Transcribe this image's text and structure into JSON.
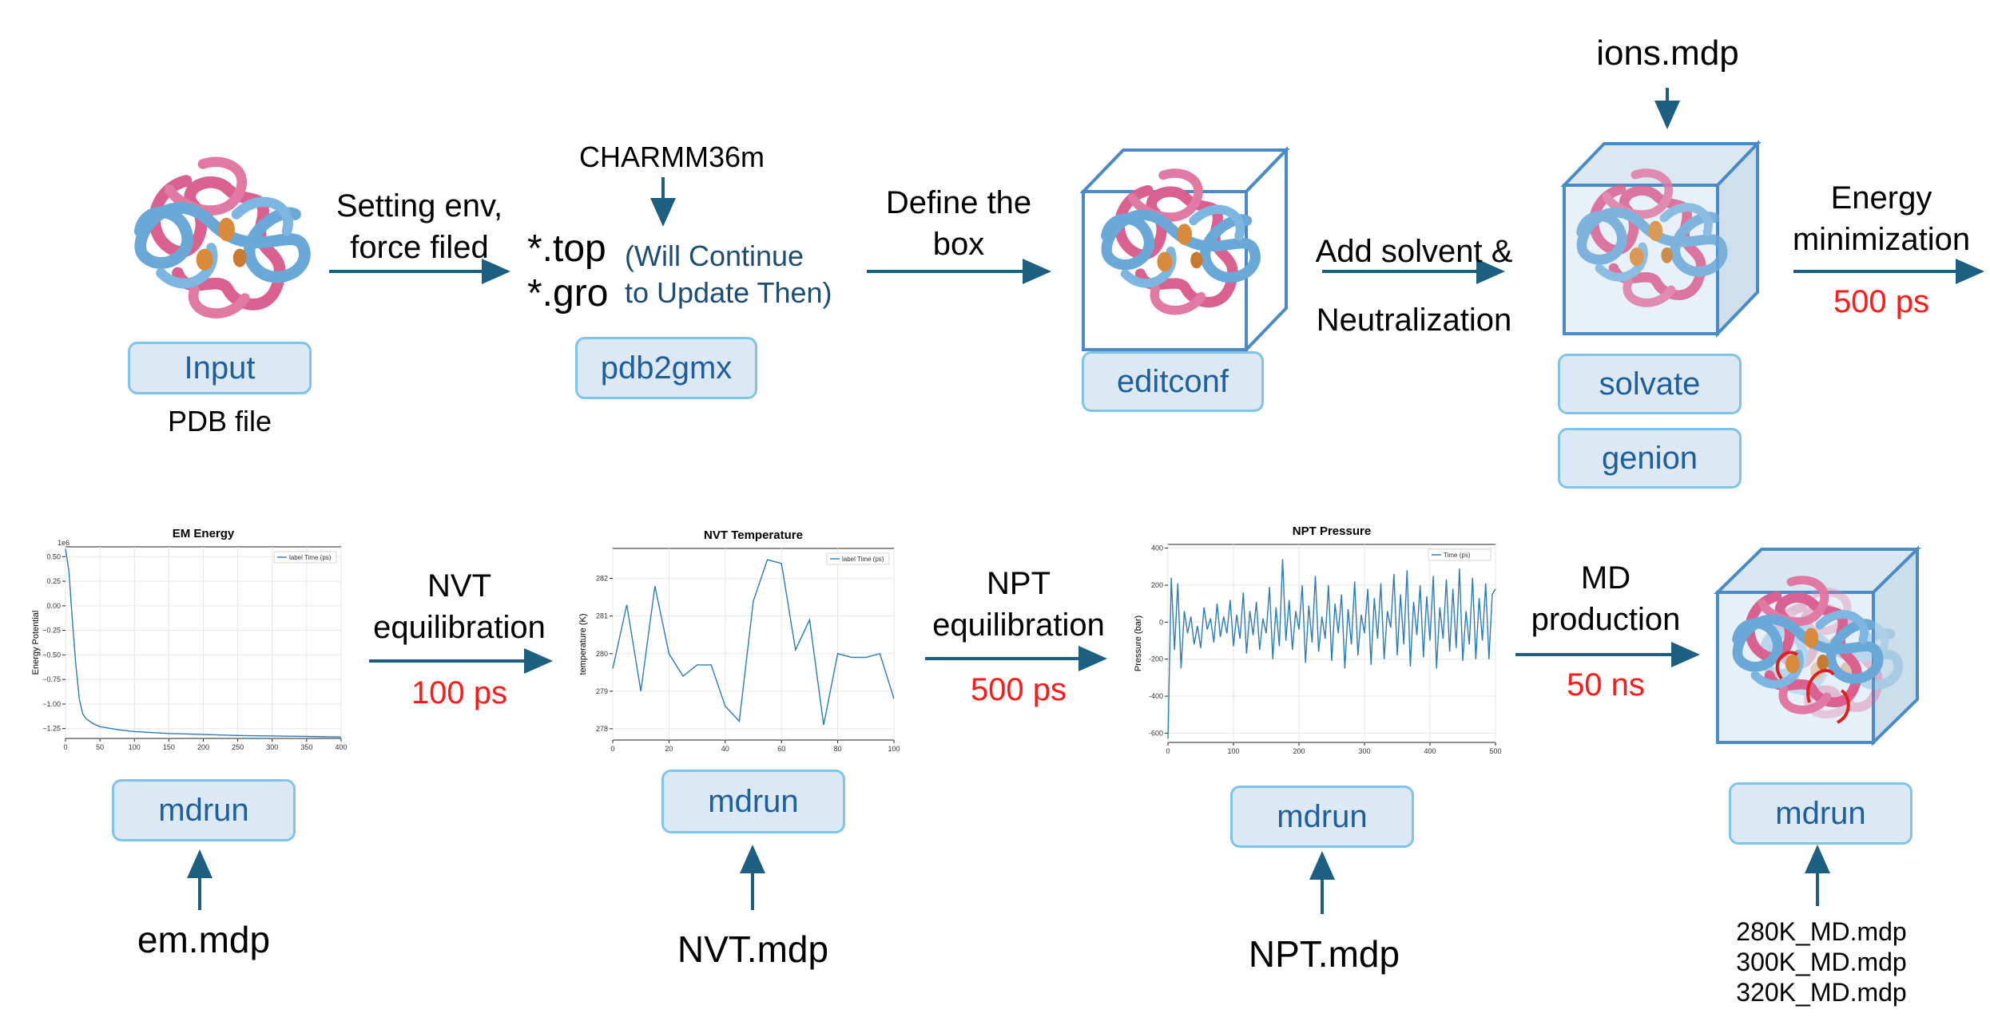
{
  "top": {
    "input_box": "Input",
    "input_caption": "PDB file",
    "arrow1_label_line1": "Setting env,",
    "arrow1_label_line2": "force filed",
    "forcefield": "CHARMM36m",
    "top_file": "*.top",
    "gro_file": "*.gro",
    "update_note_line1": "(Will Continue",
    "update_note_line2": "to Update Then)",
    "pdb2gmx_box": "pdb2gmx",
    "arrow2_label_line1": "Define the",
    "arrow2_label_line2": "box",
    "editconf_box": "editconf",
    "arrow3_label_line1": "Add solvent &",
    "arrow3_label_line2": "Neutralization",
    "ions_mdp": "ions.mdp",
    "solvate_box": "solvate",
    "genion_box": "genion",
    "arrow4_label_line1": "Energy",
    "arrow4_label_line2": "minimization",
    "arrow4_time": "500 ps"
  },
  "bottom": {
    "mdrun1": "mdrun",
    "em_mdp": "em.mdp",
    "nvt_label_line1": "NVT",
    "nvt_label_line2": "equilibration",
    "nvt_time": "100 ps",
    "mdrun2": "mdrun",
    "nvt_mdp": "NVT.mdp",
    "npt_label_line1": "NPT",
    "npt_label_line2": "equilibration",
    "npt_time": "500 ps",
    "mdrun3": "mdrun",
    "npt_mdp": "NPT.mdp",
    "md_label_line1": "MD",
    "md_label_line2": "production",
    "md_time": "50 ns",
    "mdrun4": "mdrun",
    "md_mdp_1": "280K_MD.mdp",
    "md_mdp_2": "300K_MD.mdp",
    "md_mdp_3": "320K_MD.mdp"
  },
  "colors": {
    "arrow": "#1d5f80",
    "box_fill": "#dce9f5",
    "box_border": "#7fc4e8",
    "box_text": "#1d5f9c",
    "highlight": "#ff1a1a",
    "protein_pink": "#d9608f",
    "protein_blue": "#6aa8d8",
    "protein_orange": "#d98a3a",
    "plot_line": "#2b7bba"
  },
  "chart_data": [
    {
      "type": "line",
      "title": "EM Energy",
      "ylabel": "Energy Potential",
      "xlabel": "",
      "y_scale_note": "1e6",
      "legend": "label Time (ps)",
      "xlim": [
        0,
        400
      ],
      "ylim": [
        -1.35,
        0.6
      ],
      "xticks": [
        0,
        50,
        100,
        150,
        200,
        250,
        300,
        350,
        400
      ],
      "yticks": [
        0.5,
        0.25,
        0.0,
        -0.25,
        -0.5,
        -0.75,
        -1.0,
        -1.25
      ],
      "ytick_labels": [
        "0.50",
        "0.25",
        "0.00",
        "−0.25",
        "−0.50",
        "−0.75",
        "−1.00",
        "−1.25"
      ],
      "x": [
        0,
        5,
        10,
        15,
        20,
        25,
        30,
        40,
        50,
        75,
        100,
        150,
        200,
        250,
        300,
        350,
        400
      ],
      "y": [
        0.58,
        0.35,
        -0.15,
        -0.6,
        -0.95,
        -1.1,
        -1.15,
        -1.2,
        -1.23,
        -1.26,
        -1.28,
        -1.3,
        -1.31,
        -1.32,
        -1.325,
        -1.33,
        -1.335
      ]
    },
    {
      "type": "line",
      "title": "NVT Temperature",
      "ylabel": "temperature (K)",
      "xlabel": "",
      "legend": "label Time (ps)",
      "xlim": [
        0,
        100
      ],
      "ylim": [
        277.7,
        282.8
      ],
      "xticks": [
        0,
        20,
        40,
        60,
        80,
        100
      ],
      "yticks": [
        278,
        279,
        280,
        281,
        282
      ],
      "x": [
        0,
        5,
        10,
        15,
        20,
        25,
        30,
        35,
        40,
        45,
        50,
        55,
        60,
        65,
        70,
        75,
        80,
        85,
        90,
        95,
        100
      ],
      "y": [
        279.6,
        281.3,
        279.0,
        281.8,
        280.0,
        279.4,
        279.7,
        279.7,
        278.6,
        278.2,
        281.4,
        282.5,
        282.4,
        280.1,
        280.9,
        278.1,
        280.0,
        279.9,
        279.9,
        280.0,
        278.8
      ]
    },
    {
      "type": "line",
      "title": "NPT Pressure",
      "ylabel": "Pressure (bar)",
      "xlabel": "",
      "legend": "Time (ps)",
      "xlim": [
        0,
        500
      ],
      "ylim": [
        -650,
        420
      ],
      "xticks": [
        0,
        100,
        200,
        300,
        400,
        500
      ],
      "yticks": [
        400,
        200,
        0,
        -200,
        -400,
        -600
      ],
      "x": [
        0,
        5,
        10,
        15,
        20,
        25,
        30,
        35,
        40,
        45,
        50,
        55,
        60,
        65,
        70,
        75,
        80,
        85,
        90,
        95,
        100,
        105,
        110,
        115,
        120,
        125,
        130,
        135,
        140,
        145,
        150,
        155,
        160,
        165,
        170,
        175,
        180,
        185,
        190,
        195,
        200,
        205,
        210,
        215,
        220,
        225,
        230,
        235,
        240,
        245,
        250,
        255,
        260,
        265,
        270,
        275,
        280,
        285,
        290,
        295,
        300,
        305,
        310,
        315,
        320,
        325,
        330,
        335,
        340,
        345,
        350,
        355,
        360,
        365,
        370,
        375,
        380,
        385,
        390,
        395,
        400,
        405,
        410,
        415,
        420,
        425,
        430,
        435,
        440,
        445,
        450,
        455,
        460,
        465,
        470,
        475,
        480,
        485,
        490,
        495,
        500
      ],
      "y": [
        -630,
        240,
        -150,
        210,
        -250,
        60,
        -60,
        30,
        -120,
        -20,
        -140,
        80,
        -40,
        20,
        -110,
        100,
        -80,
        30,
        -60,
        120,
        -130,
        40,
        -90,
        160,
        -170,
        60,
        -70,
        110,
        -150,
        20,
        -60,
        190,
        -200,
        80,
        -130,
        340,
        -100,
        120,
        -150,
        60,
        -40,
        200,
        -220,
        90,
        -110,
        250,
        -160,
        30,
        -90,
        200,
        -210,
        100,
        -60,
        150,
        -250,
        70,
        -120,
        220,
        -180,
        40,
        -60,
        180,
        -230,
        130,
        -90,
        210,
        -200,
        60,
        -30,
        260,
        -180,
        150,
        -120,
        280,
        -240,
        110,
        -70,
        200,
        -190,
        140,
        -100,
        250,
        -250,
        80,
        -90,
        230,
        -160,
        180,
        -140,
        290,
        -210,
        60,
        -120,
        240,
        -200,
        130,
        -100,
        210,
        -200,
        150,
        180
      ]
    }
  ]
}
